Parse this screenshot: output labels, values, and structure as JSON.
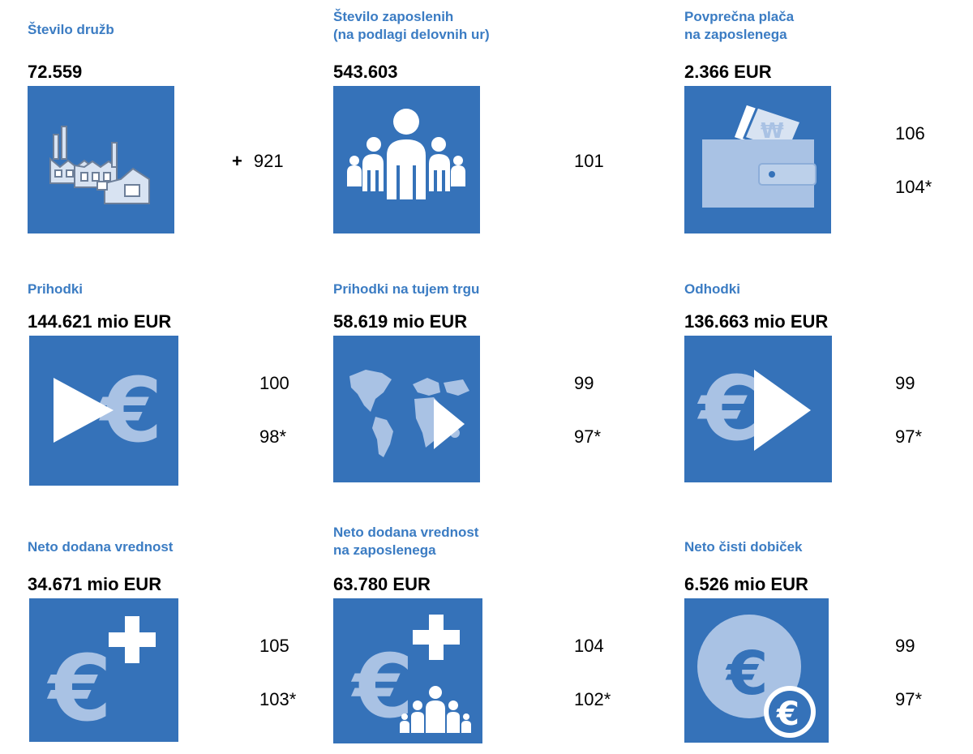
{
  "items": [
    {
      "label": "Število družb",
      "value": "72.559",
      "icon": "factory-icon",
      "index_prefix": "+",
      "index_1": "921",
      "index_2": ""
    },
    {
      "label": "Število zaposlenih\n(na podlagi delovnih ur)",
      "value": "543.603",
      "icon": "people-icon",
      "index_prefix": "",
      "index_1": "101",
      "index_2": ""
    },
    {
      "label": "Povprečna plača\nna zaposlenega",
      "value": "2.366 EUR",
      "icon": "wallet-icon",
      "index_prefix": "",
      "index_1": "106",
      "index_2": "104*"
    },
    {
      "label": "Prihodki",
      "value": "144.621 mio EUR",
      "icon": "revenue-play-euro-icon",
      "index_prefix": "",
      "index_1": "100",
      "index_2": "98*"
    },
    {
      "label": "Prihodki na tujem trgu",
      "value": "58.619 mio EUR",
      "icon": "world-map-icon",
      "index_prefix": "",
      "index_1": "99",
      "index_2": "97*"
    },
    {
      "label": "Odhodki",
      "value": "136.663 mio EUR",
      "icon": "expense-euro-play-icon",
      "index_prefix": "",
      "index_1": "99",
      "index_2": "97*"
    },
    {
      "label": "Neto dodana vrednost",
      "value": "34.671 mio EUR",
      "icon": "euro-plus-icon",
      "index_prefix": "",
      "index_1": "105",
      "index_2": "103*"
    },
    {
      "label": "Neto dodana vrednost\nna zaposlenega",
      "value": "63.780 EUR",
      "icon": "euro-plus-people-icon",
      "index_prefix": "",
      "index_1": "104",
      "index_2": "102*"
    },
    {
      "label": "Neto čisti dobiček",
      "value": "6.526 mio EUR",
      "icon": "coin-euro-icon",
      "index_prefix": "",
      "index_1": "99",
      "index_2": "97*"
    }
  ],
  "colors": {
    "label": "#3b7cc3",
    "tile": "#3572b9",
    "icon_light": "#a9c2e4",
    "icon_white": "#ffffff"
  }
}
